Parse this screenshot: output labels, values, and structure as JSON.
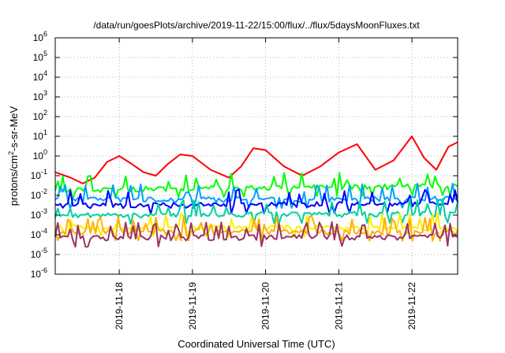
{
  "chart_data": {
    "type": "line",
    "title": "/data/run/goesPlots/archive/2019-11-22/15:00/flux/../flux/5daysMoonFluxes.txt",
    "xlabel": "Coordinated Universal Time (UTC)",
    "ylabel_parts": [
      "protons/cm",
      "2",
      "-s-sr-MeV"
    ],
    "yscale": "log",
    "ylim_exp": [
      -6,
      6
    ],
    "ytick_labels": [
      {
        "base": "10",
        "exp": "-6"
      },
      {
        "base": "10",
        "exp": "-5"
      },
      {
        "base": "10",
        "exp": "-4"
      },
      {
        "base": "10",
        "exp": "-3"
      },
      {
        "base": "10",
        "exp": "-2"
      },
      {
        "base": "10",
        "exp": "-1"
      },
      {
        "base": "10",
        "exp": "0"
      },
      {
        "base": "10",
        "exp": "1"
      },
      {
        "base": "10",
        "exp": "2"
      },
      {
        "base": "10",
        "exp": "3"
      },
      {
        "base": "10",
        "exp": "4"
      },
      {
        "base": "10",
        "exp": "5"
      },
      {
        "base": "10",
        "exp": "6"
      }
    ],
    "xlim": [
      "2019-11-17T03:00",
      "2019-11-22T15:00"
    ],
    "xticks": [
      "2019-11-18",
      "2019-11-19",
      "2019-11-20",
      "2019-11-21",
      "2019-11-22"
    ],
    "grid": true,
    "series": [
      {
        "color": "#ff0000",
        "base": 0.8,
        "pattern": "diurnal",
        "x": [
          "2019-11-17T03:00",
          "2019-11-17T08:00",
          "2019-11-17T12:00",
          "2019-11-17T16:00",
          "2019-11-17T20:00",
          "2019-11-18T00:00",
          "2019-11-18T04:00",
          "2019-11-18T08:00",
          "2019-11-18T12:00",
          "2019-11-18T16:00",
          "2019-11-18T20:00",
          "2019-11-19T00:00",
          "2019-11-19T06:00",
          "2019-11-19T12:00",
          "2019-11-19T16:00",
          "2019-11-19T20:00",
          "2019-11-20T00:00",
          "2019-11-20T06:00",
          "2019-11-20T12:00",
          "2019-11-20T18:00",
          "2019-11-21T00:00",
          "2019-11-21T06:00",
          "2019-11-21T12:00",
          "2019-11-21T18:00",
          "2019-11-22T00:00",
          "2019-11-22T04:00",
          "2019-11-22T08:00",
          "2019-11-22T12:00",
          "2019-11-22T15:00"
        ],
        "y": [
          0.15,
          0.08,
          0.04,
          0.08,
          0.5,
          1.0,
          0.4,
          0.15,
          0.1,
          0.4,
          1.2,
          1.0,
          0.2,
          0.08,
          0.3,
          2.5,
          2.0,
          0.3,
          0.1,
          0.3,
          1.5,
          4.0,
          0.2,
          0.6,
          10.0,
          0.8,
          0.2,
          3.0,
          5.0
        ]
      },
      {
        "color": "#00ff00",
        "base": 0.04,
        "pattern": "spiky",
        "x": [
          "2019-11-17T03:00",
          "2019-11-22T15:00"
        ],
        "y": [
          0.02,
          0.03
        ]
      },
      {
        "color": "#00a0ff",
        "base": 0.005,
        "pattern": "spiky",
        "x": [
          "2019-11-17T03:00",
          "2019-11-22T15:00"
        ],
        "y": [
          0.006,
          0.007
        ]
      },
      {
        "color": "#0000ff",
        "base": 0.003,
        "pattern": "spiky",
        "x": [
          "2019-11-17T03:00",
          "2019-11-22T15:00"
        ],
        "y": [
          0.003,
          0.004
        ]
      },
      {
        "color": "#00d0a0",
        "base": 0.001,
        "pattern": "spiky",
        "x": [
          "2019-11-17T03:00",
          "2019-11-22T15:00"
        ],
        "y": [
          0.001,
          0.0012
        ]
      },
      {
        "color": "#ffee00",
        "base": 0.00025,
        "pattern": "spiky",
        "x": [
          "2019-11-17T03:00",
          "2019-11-22T15:00"
        ],
        "y": [
          0.00025,
          0.00022
        ]
      },
      {
        "color": "#ffb000",
        "base": 0.00015,
        "pattern": "spiky",
        "x": [
          "2019-11-17T03:00",
          "2019-11-22T15:00"
        ],
        "y": [
          0.00015,
          0.00014
        ]
      },
      {
        "color": "#993366",
        "base": 8e-05,
        "pattern": "spiky",
        "x": [
          "2019-11-17T03:00",
          "2019-11-22T15:00"
        ],
        "y": [
          7e-05,
          8e-05
        ]
      }
    ]
  }
}
